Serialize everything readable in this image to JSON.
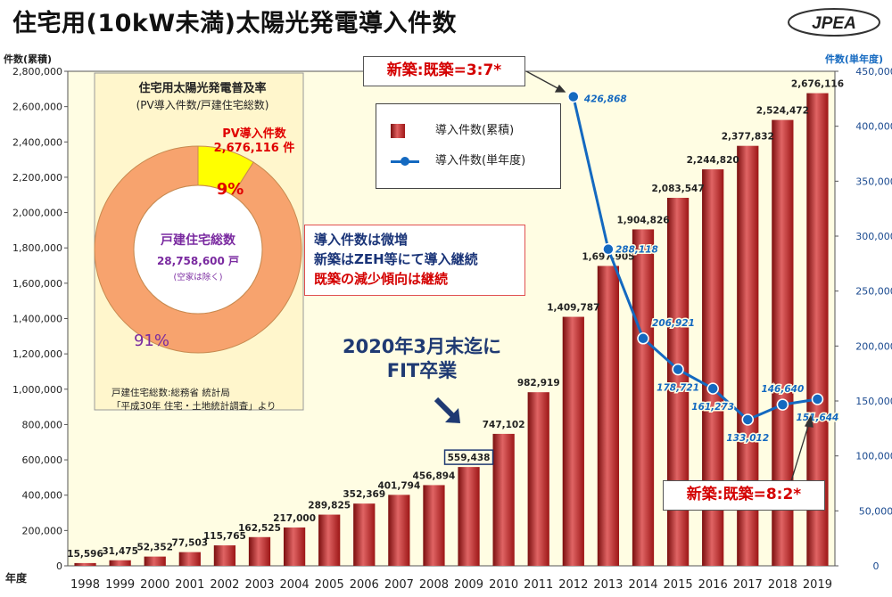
{
  "page": {
    "title": "住宅用(10kW未満)太陽光発電導入件数",
    "logo": "JPEA"
  },
  "axes": {
    "left_label": "件数(累積)",
    "right_label": "件数(単年度)",
    "x_label": "年度",
    "left_ticks": [
      "0",
      "200,000",
      "400,000",
      "600,000",
      "800,000",
      "1,000,000",
      "1,200,000",
      "1,400,000",
      "1,600,000",
      "1,800,000",
      "2,000,000",
      "2,200,000",
      "2,400,000",
      "2,600,000",
      "2,800,000"
    ],
    "right_ticks": [
      "0",
      "50,000",
      "100,000",
      "150,000",
      "200,000",
      "250,000",
      "300,000",
      "350,000",
      "400,000",
      "450,000"
    ]
  },
  "legend": {
    "bar": "導入件数(累積)",
    "line": "導入件数(単年度)"
  },
  "inset": {
    "title": "住宅用太陽光発電普及率",
    "subtitle": "(PV導入件数/戸建住宅総数)",
    "pv_label": "PV導入件数",
    "pv_value": "2,676,116 件",
    "pv_pct": "9%",
    "other_pct": "91%",
    "center_label": "戸建住宅総数",
    "center_value": "28,758,600 戸",
    "center_note": "(空家は除く)",
    "source1": "戸建住宅総数:総務省 統計局",
    "source2": "「平成30年 住宅・土地統計調査」より",
    "colors": {
      "pv": "#ffff00",
      "other": "#f7a36e"
    }
  },
  "annotations": {
    "note1": "新築:既築=3:7*",
    "note2": "新築:既築=8:2*",
    "trend1": "導入件数は微増",
    "trend2": "新築はZEH等にて導入継続",
    "trend3": "既築の減少傾向は継続",
    "fit1": "2020年3月末迄に",
    "fit2": "FIT卒業"
  },
  "colors": {
    "bar": "#b52020",
    "line": "#1469c0",
    "plot_bg": "#fffde3",
    "inset_bg": "#fff6cc"
  },
  "chart_data": {
    "type": "bar",
    "categories": [
      "1998",
      "1999",
      "2000",
      "2001",
      "2002",
      "2003",
      "2004",
      "2005",
      "2006",
      "2007",
      "2008",
      "2009",
      "2010",
      "2011",
      "2012",
      "2013",
      "2014",
      "2015",
      "2016",
      "2017",
      "2018",
      "2019"
    ],
    "series": [
      {
        "name": "導入件数(累積)",
        "type": "bar",
        "axis": "left",
        "values": [
          15596,
          31475,
          52352,
          77503,
          115765,
          162525,
          217000,
          289825,
          352369,
          401794,
          456894,
          559438,
          747102,
          982919,
          1409787,
          1697905,
          1904826,
          2083547,
          2244820,
          2377832,
          2524472,
          2676116
        ],
        "labels": [
          "15,596",
          "31,475",
          "52,352",
          "77,503",
          "115,765",
          "162,525",
          "217,000",
          "289,825",
          "352,369",
          "401,794",
          "456,894",
          "559,438",
          "747,102",
          "982,919",
          "1,409,787",
          "1,697,905",
          "1,904,826",
          "2,083,547",
          "2,244,820",
          "2,377,832",
          "2,524,472",
          "2,676,116"
        ]
      },
      {
        "name": "導入件数(単年度)",
        "type": "line",
        "axis": "right",
        "x": [
          "2012",
          "2013",
          "2014",
          "2015",
          "2016",
          "2017",
          "2018",
          "2019"
        ],
        "values": [
          426868,
          288118,
          206921,
          178721,
          161273,
          133012,
          146640,
          151644
        ],
        "labels": [
          "426,868",
          "288,118",
          "206,921",
          "178,721",
          "161,273",
          "133,012",
          "146,640",
          "151,644"
        ]
      }
    ],
    "ylim_left": [
      0,
      2800000
    ],
    "ylim_right": [
      0,
      450000
    ],
    "highlight_category": "2009",
    "inset_pie": {
      "type": "pie",
      "values": [
        9,
        91
      ]
    }
  }
}
